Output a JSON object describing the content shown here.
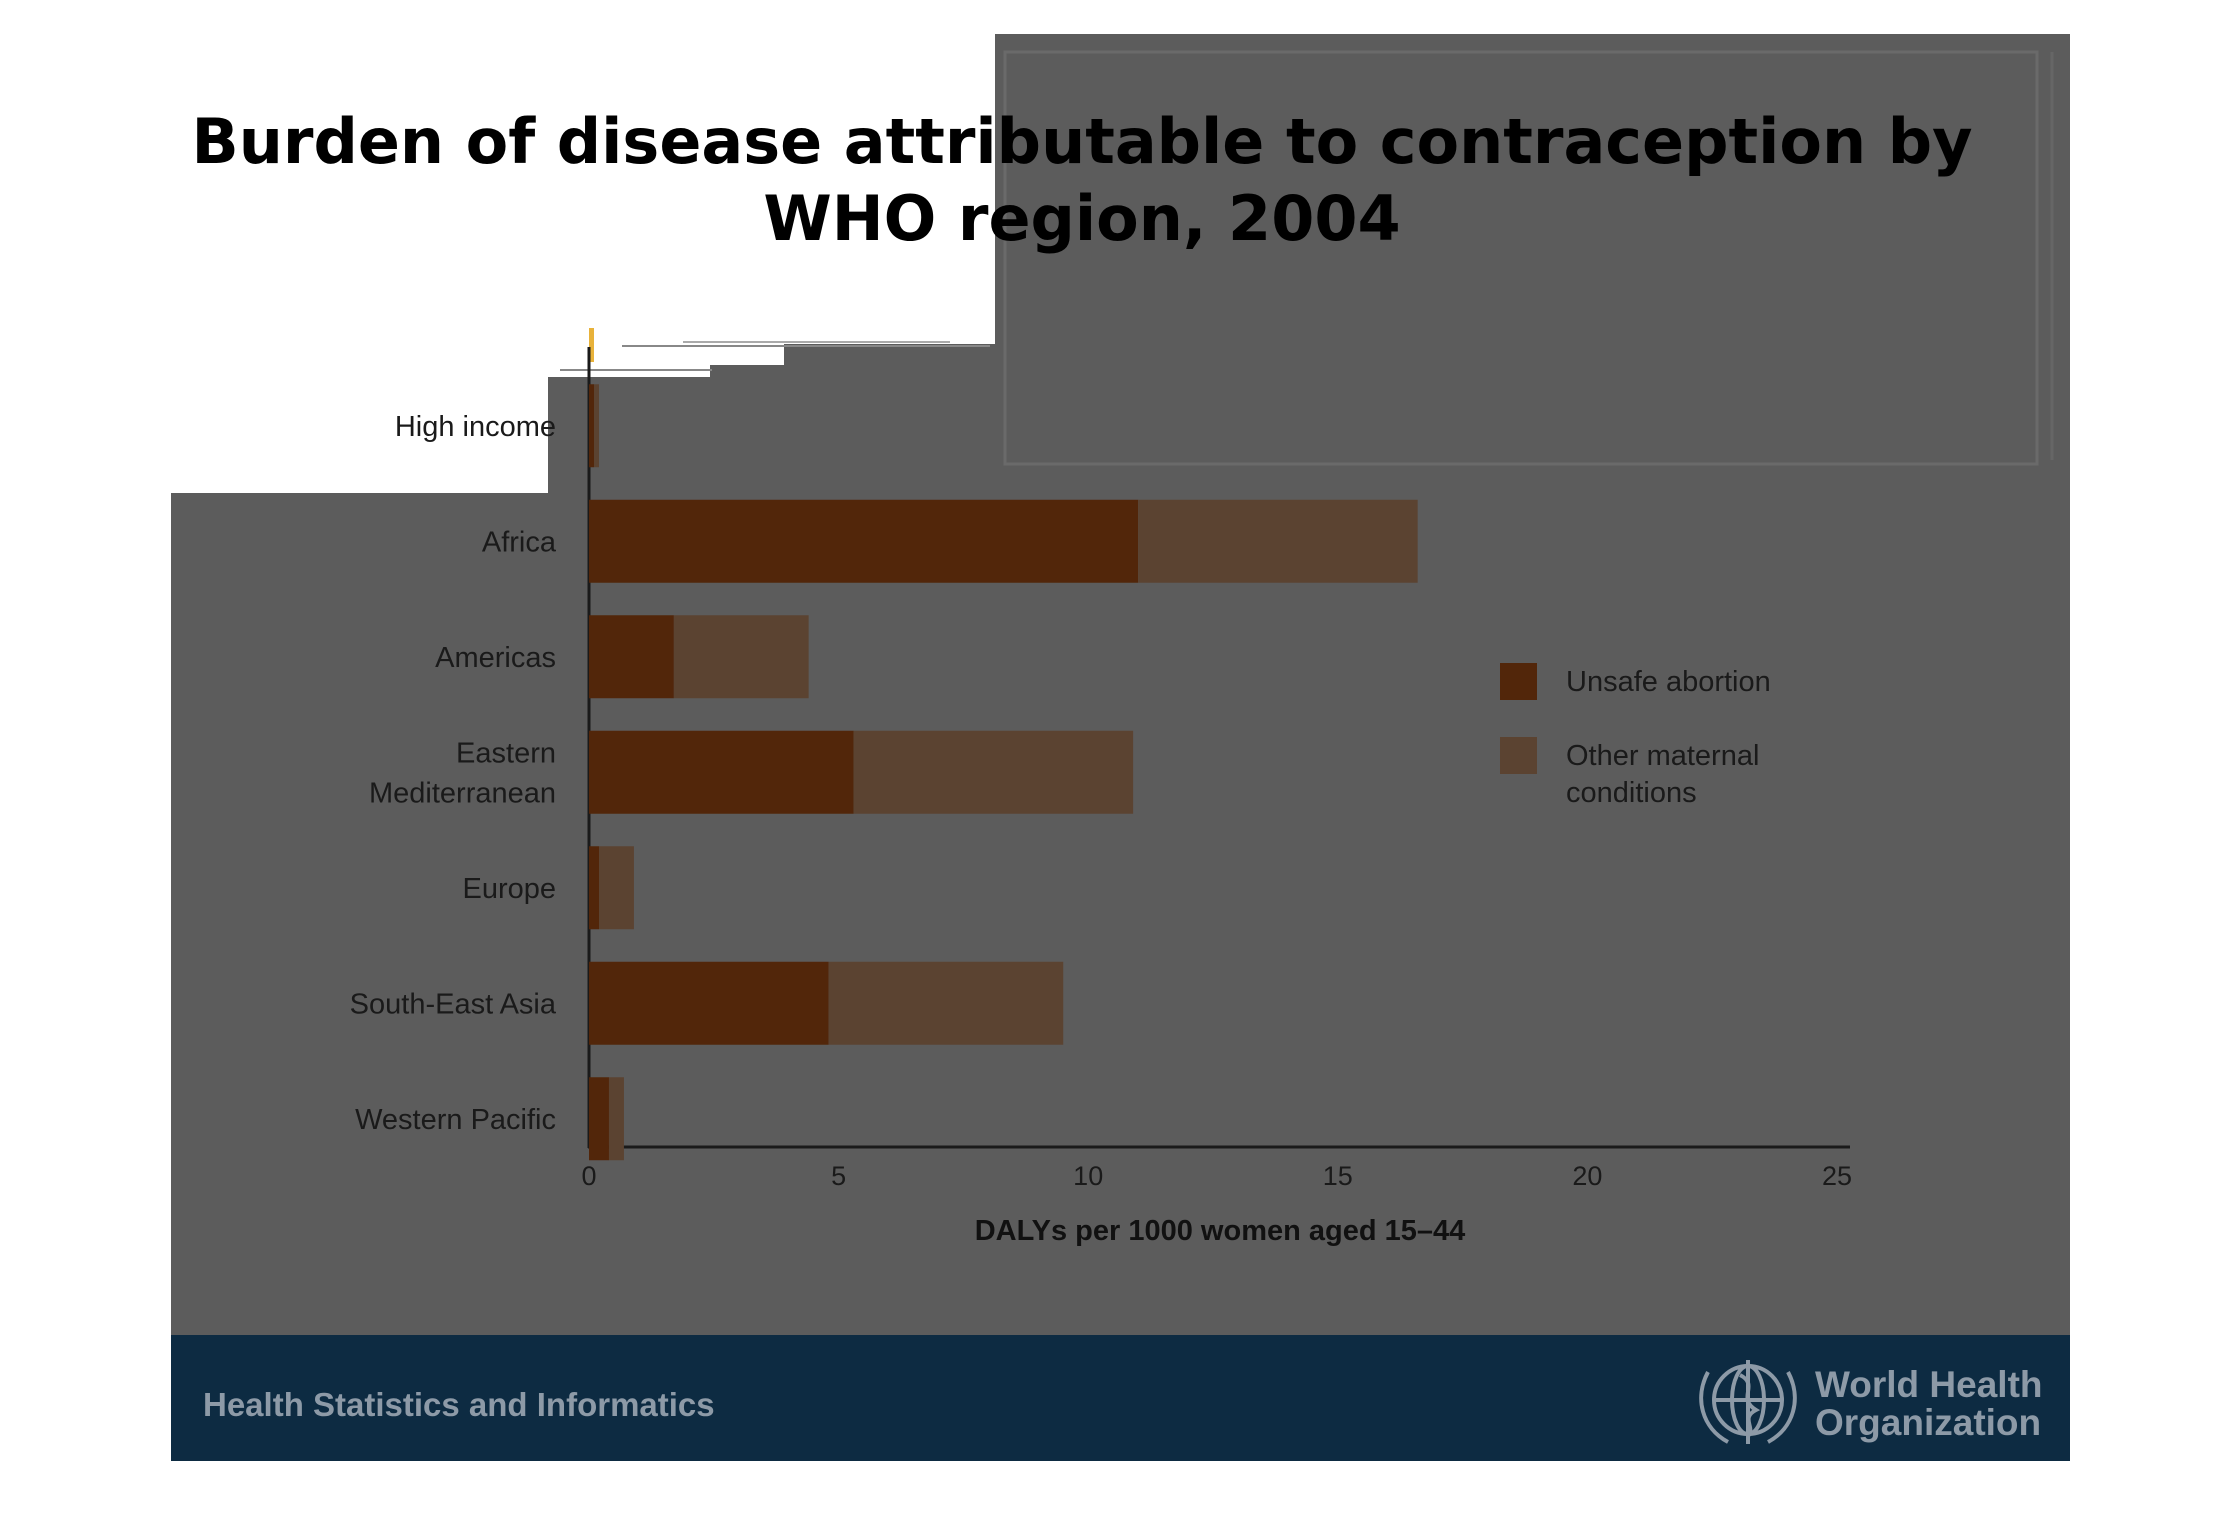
{
  "slide": {
    "title_line1": "Burden of disease attributable to contraception by",
    "title_line2": "WHO region, 2004",
    "footer_left": "Health Statistics and Informatics",
    "org_line1": "World Health",
    "org_line2": "Organization",
    "colors": {
      "panel": "#5c5c5c",
      "footer_band": "#0d2b42",
      "footer_text": "#8d9aa7"
    }
  },
  "chart_data": {
    "type": "bar",
    "orientation": "horizontal",
    "stacked": true,
    "categories": [
      "High income",
      "Africa",
      "Americas",
      "Eastern Mediterranean",
      "Europe",
      "South-East Asia",
      "Western Pacific"
    ],
    "category_lines": [
      [
        "High income"
      ],
      [
        "Africa"
      ],
      [
        "Americas"
      ],
      [
        "Eastern",
        "Mediterranean"
      ],
      [
        "Europe"
      ],
      [
        "South-East Asia"
      ],
      [
        "Western Pacific"
      ]
    ],
    "series": [
      {
        "name": "Unsafe abortion",
        "color": "#52260a",
        "values": [
          0.1,
          11.0,
          1.7,
          5.3,
          0.2,
          4.8,
          0.4
        ]
      },
      {
        "name": "Other maternal conditions",
        "color": "#5b4331",
        "values": [
          0.1,
          5.6,
          2.7,
          5.6,
          0.7,
          4.7,
          0.3
        ]
      }
    ],
    "legend_lines": [
      [
        "Unsafe abortion"
      ],
      [
        "Other maternal",
        "conditions"
      ]
    ],
    "xlabel": "DALYs per 1000 women aged 15–44",
    "xlim": [
      0,
      25
    ],
    "xticks": [
      0,
      5,
      10,
      15,
      20,
      25
    ],
    "legend_position": "right",
    "grid": false
  }
}
